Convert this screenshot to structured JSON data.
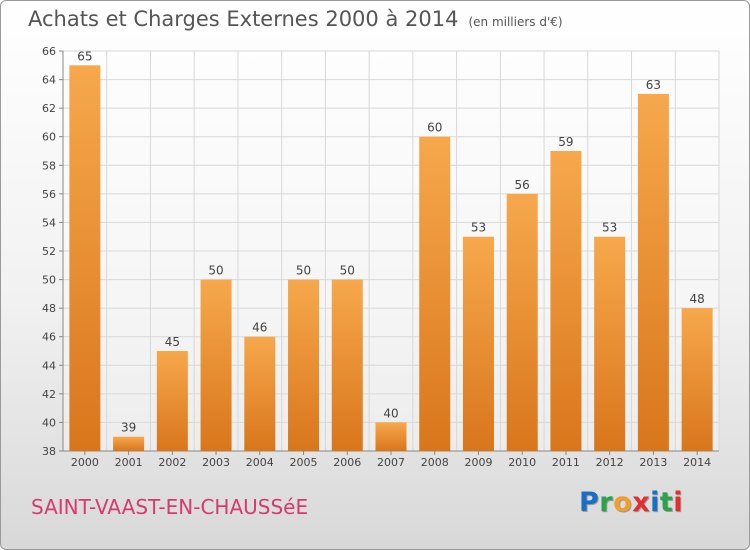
{
  "title": "Achats et Charges Externes 2000 à 2014",
  "unit_note": "(en milliers d'€)",
  "commune": "SAINT-VAAST-EN-CHAUSSéE",
  "logo": {
    "letters": [
      "P",
      "r",
      "o",
      "x",
      "i",
      "t",
      "i"
    ],
    "colors": [
      "#1a6fc4",
      "#2aa34a",
      "#f0a02a",
      "#e03030",
      "#1a6fc4",
      "#2aa34a",
      "#e03030"
    ]
  },
  "colors": {
    "bar_light": "#f7a84c",
    "bar_dark": "#d9761c",
    "grid": "#d8d8d8"
  },
  "chart_data": {
    "type": "bar",
    "categories": [
      "2000",
      "2001",
      "2002",
      "2003",
      "2004",
      "2005",
      "2006",
      "2007",
      "2008",
      "2009",
      "2010",
      "2011",
      "2012",
      "2013",
      "2014"
    ],
    "values": [
      65,
      39,
      45,
      50,
      46,
      50,
      50,
      40,
      60,
      53,
      56,
      59,
      53,
      63,
      48
    ],
    "data_labels": [
      "65",
      "39",
      "45",
      "50",
      "46",
      "50",
      "50",
      "40",
      "60",
      "53",
      "56",
      "59",
      "53",
      "63",
      "48"
    ],
    "ylim": [
      38,
      66
    ],
    "yticks": [
      38,
      40,
      42,
      44,
      46,
      48,
      50,
      52,
      54,
      56,
      58,
      60,
      62,
      64,
      66
    ],
    "grid": true,
    "legend": "none"
  }
}
